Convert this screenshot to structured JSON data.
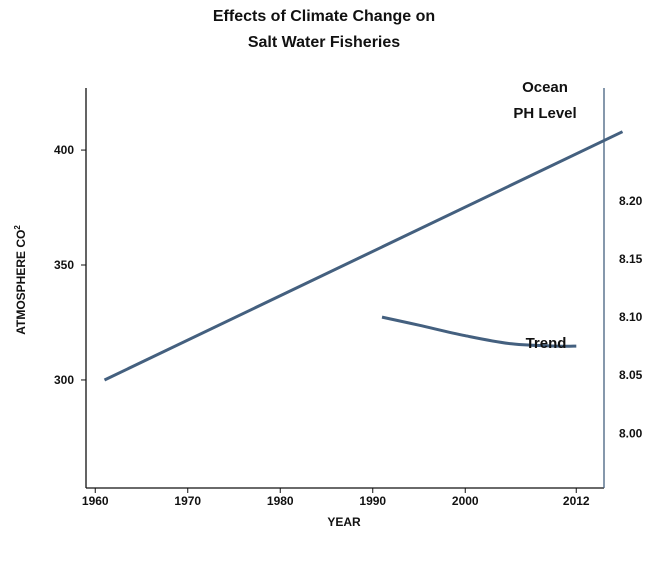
{
  "chart_data": {
    "type": "line",
    "title_lines": [
      "Effects of Climate Change on",
      "Salt Water Fisheries"
    ],
    "xlabel": "YEAR",
    "ylabel": "ATMOSPHERE CO",
    "ylabel_sup": "2",
    "xlim": [
      1959,
      2015
    ],
    "ylim_left": [
      253,
      427
    ],
    "ylim_right": [
      7.953,
      8.297
    ],
    "x_ticks": [
      1960,
      1970,
      1980,
      1990,
      2000,
      2012
    ],
    "y_left_ticks": [
      300,
      350,
      400
    ],
    "y_right_ticks": [
      "8.00",
      "8.05",
      "8.10",
      "8.15",
      "8.20"
    ],
    "y_right_tick_values": [
      8.0,
      8.05,
      8.1,
      8.15,
      8.2
    ],
    "grid": false,
    "colors": {
      "line": "#44607f",
      "axis": "#111111"
    },
    "series": [
      {
        "axis": "left",
        "x": [
          1961,
          2017
        ],
        "values": [
          300,
          408
        ]
      },
      {
        "axis": "right",
        "x": [
          1991,
          1995,
          2000,
          2005,
          2010,
          2012
        ],
        "values": [
          8.1,
          8.093,
          8.084,
          8.077,
          8.075,
          8.075
        ]
      }
    ],
    "annotations": [
      {
        "text": "Ocean",
        "anchor": "upper-right"
      },
      {
        "text": "PH Level",
        "anchor": "upper-right"
      },
      {
        "text": "Trend",
        "anchor": "right"
      }
    ]
  }
}
